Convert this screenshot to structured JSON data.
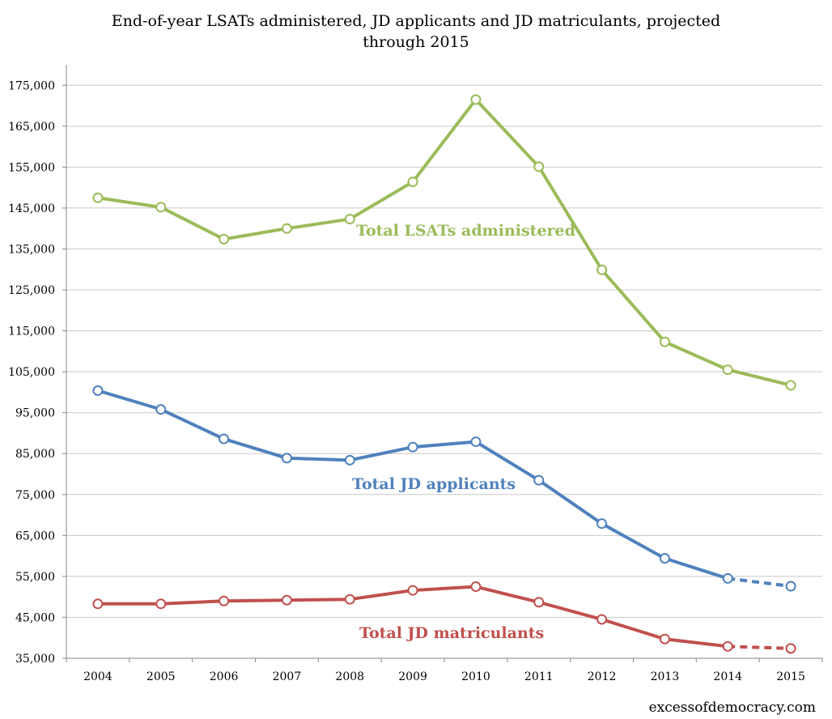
{
  "chart_data": {
    "type": "line",
    "title": "End-of-year LSATs administered, JD applicants and JD matriculants, projected through 2015",
    "title_lines": [
      "End-of-year LSATs administered, JD applicants and JD matriculants, projected",
      "through 2015"
    ],
    "xlabel": "",
    "ylabel": "",
    "ylim": [
      35000,
      180000
    ],
    "yticks": [
      35000,
      45000,
      55000,
      65000,
      75000,
      85000,
      95000,
      105000,
      115000,
      125000,
      135000,
      145000,
      155000,
      165000,
      175000
    ],
    "ytick_labels": [
      "35,000",
      "45,000",
      "55,000",
      "65,000",
      "75,000",
      "85,000",
      "95,000",
      "105,000",
      "115,000",
      "125,000",
      "135,000",
      "145,000",
      "155,000",
      "165,000",
      "175,000"
    ],
    "categories": [
      "2004",
      "2005",
      "2006",
      "2007",
      "2008",
      "2009",
      "2010",
      "2011",
      "2012",
      "2013",
      "2014",
      "2015"
    ],
    "grid": true,
    "series": [
      {
        "name": "Total LSATs administered",
        "color": "#9bbb59",
        "values": [
          147500,
          145200,
          137400,
          140000,
          142300,
          151400,
          171500,
          155100,
          129900,
          112300,
          105500,
          101700
        ],
        "projected_from_index": 11
      },
      {
        "name": "Total JD applicants",
        "color": "#4f81bd",
        "values": [
          100400,
          95800,
          88600,
          83900,
          83400,
          86600,
          87900,
          78500,
          67900,
          59400,
          54500,
          52600
        ],
        "projected_from_index": 10
      },
      {
        "name": "Total JD matriculants",
        "color": "#c0504d",
        "values": [
          48300,
          48300,
          49000,
          49200,
          49400,
          51600,
          52500,
          48700,
          44500,
          39700,
          37900,
          37400
        ],
        "projected_from_index": 10
      }
    ],
    "annotations": [
      "Total LSATs administered",
      "Total JD applicants",
      "Total JD matriculants"
    ]
  },
  "credit": "excessofdemocracy.com"
}
